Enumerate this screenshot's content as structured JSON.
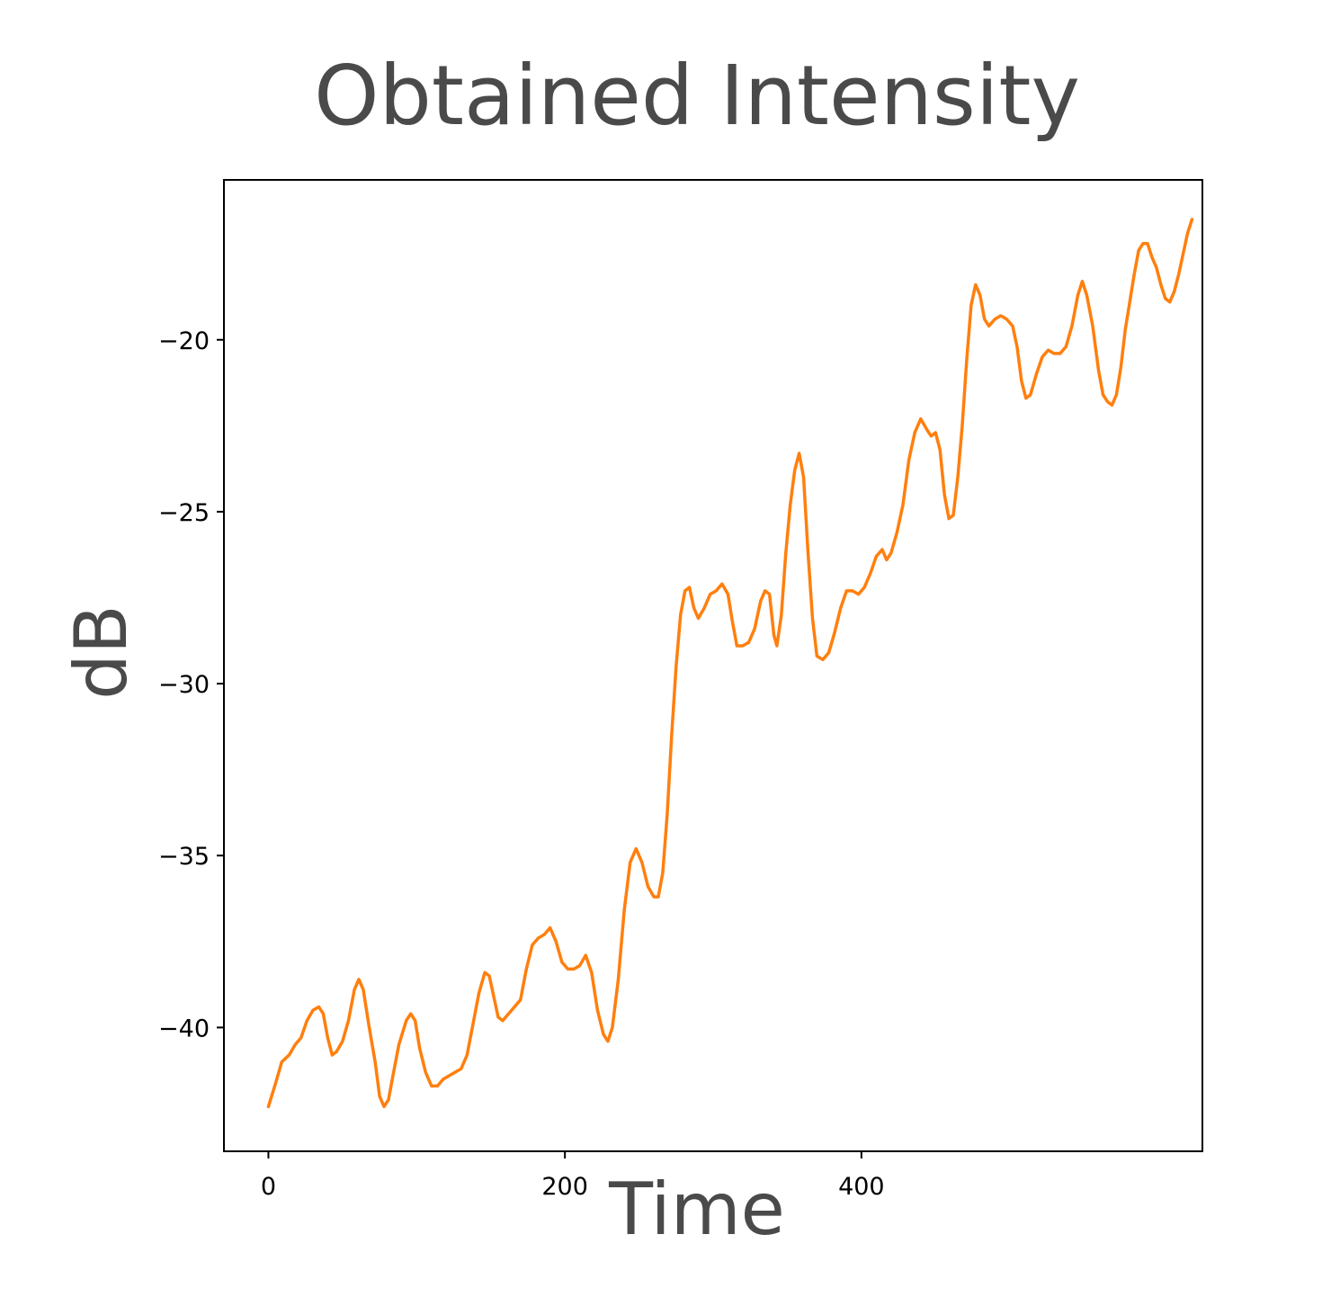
{
  "chart_data": {
    "type": "line",
    "title": "Obtained Intensity",
    "xlabel": "Time",
    "ylabel": "dB",
    "xlim": [
      -30,
      630
    ],
    "ylim": [
      -43.6,
      -15.35
    ],
    "x_ticks": [
      0,
      200,
      400
    ],
    "x_tick_labels": [
      "0",
      "200",
      "400"
    ],
    "y_ticks": [
      -40,
      -35,
      -30,
      -25,
      -20
    ],
    "y_tick_labels": [
      "−40",
      "−35",
      "−30",
      "−25",
      "−20"
    ],
    "grid": false,
    "legend": "none",
    "color": "#ff7f0e",
    "series": [
      {
        "points": [
          [
            0,
            -42.3
          ],
          [
            5,
            -41.6
          ],
          [
            9,
            -41.0
          ],
          [
            14,
            -40.8
          ],
          [
            18,
            -40.5
          ],
          [
            22,
            -40.3
          ],
          [
            26,
            -39.8
          ],
          [
            30,
            -39.5
          ],
          [
            34,
            -39.4
          ],
          [
            37,
            -39.6
          ],
          [
            40,
            -40.3
          ],
          [
            43,
            -40.8
          ],
          [
            46,
            -40.7
          ],
          [
            50,
            -40.4
          ],
          [
            54,
            -39.8
          ],
          [
            58,
            -38.9
          ],
          [
            61,
            -38.6
          ],
          [
            64,
            -38.9
          ],
          [
            68,
            -40.0
          ],
          [
            72,
            -41.0
          ],
          [
            75,
            -42.0
          ],
          [
            78,
            -42.3
          ],
          [
            81,
            -42.1
          ],
          [
            84,
            -41.4
          ],
          [
            88,
            -40.5
          ],
          [
            93,
            -39.8
          ],
          [
            96,
            -39.6
          ],
          [
            99,
            -39.8
          ],
          [
            102,
            -40.6
          ],
          [
            106,
            -41.3
          ],
          [
            110,
            -41.7
          ],
          [
            114,
            -41.7
          ],
          [
            118,
            -41.5
          ],
          [
            122,
            -41.4
          ],
          [
            126,
            -41.3
          ],
          [
            130,
            -41.2
          ],
          [
            134,
            -40.8
          ],
          [
            138,
            -39.9
          ],
          [
            142,
            -39.0
          ],
          [
            146,
            -38.4
          ],
          [
            149,
            -38.5
          ],
          [
            152,
            -39.1
          ],
          [
            155,
            -39.7
          ],
          [
            158,
            -39.8
          ],
          [
            162,
            -39.6
          ],
          [
            166,
            -39.4
          ],
          [
            170,
            -39.2
          ],
          [
            174,
            -38.3
          ],
          [
            178,
            -37.6
          ],
          [
            182,
            -37.4
          ],
          [
            186,
            -37.3
          ],
          [
            190,
            -37.1
          ],
          [
            194,
            -37.5
          ],
          [
            198,
            -38.1
          ],
          [
            202,
            -38.3
          ],
          [
            206,
            -38.3
          ],
          [
            210,
            -38.2
          ],
          [
            214,
            -37.9
          ],
          [
            218,
            -38.4
          ],
          [
            222,
            -39.5
          ],
          [
            226,
            -40.2
          ],
          [
            229,
            -40.4
          ],
          [
            232,
            -40.0
          ],
          [
            236,
            -38.6
          ],
          [
            240,
            -36.6
          ],
          [
            244,
            -35.2
          ],
          [
            248,
            -34.8
          ],
          [
            252,
            -35.2
          ],
          [
            256,
            -35.9
          ],
          [
            260,
            -36.2
          ],
          [
            263,
            -36.2
          ],
          [
            266,
            -35.5
          ],
          [
            269,
            -33.8
          ],
          [
            272,
            -31.5
          ],
          [
            275,
            -29.5
          ],
          [
            278,
            -28.0
          ],
          [
            281,
            -27.3
          ],
          [
            284,
            -27.2
          ],
          [
            287,
            -27.8
          ],
          [
            290,
            -28.1
          ],
          [
            294,
            -27.8
          ],
          [
            298,
            -27.4
          ],
          [
            302,
            -27.3
          ],
          [
            306,
            -27.1
          ],
          [
            310,
            -27.4
          ],
          [
            313,
            -28.2
          ],
          [
            316,
            -28.9
          ],
          [
            320,
            -28.9
          ],
          [
            324,
            -28.8
          ],
          [
            328,
            -28.4
          ],
          [
            332,
            -27.6
          ],
          [
            335,
            -27.3
          ],
          [
            338,
            -27.4
          ],
          [
            341,
            -28.6
          ],
          [
            343,
            -28.9
          ],
          [
            346,
            -28.0
          ],
          [
            349,
            -26.2
          ],
          [
            352,
            -24.8
          ],
          [
            355,
            -23.8
          ],
          [
            358,
            -23.3
          ],
          [
            361,
            -24.0
          ],
          [
            364,
            -26.2
          ],
          [
            367,
            -28.1
          ],
          [
            370,
            -29.2
          ],
          [
            374,
            -29.3
          ],
          [
            378,
            -29.1
          ],
          [
            382,
            -28.5
          ],
          [
            386,
            -27.8
          ],
          [
            390,
            -27.3
          ],
          [
            394,
            -27.3
          ],
          [
            398,
            -27.4
          ],
          [
            402,
            -27.2
          ],
          [
            406,
            -26.8
          ],
          [
            410,
            -26.3
          ],
          [
            414,
            -26.1
          ],
          [
            417,
            -26.4
          ],
          [
            420,
            -26.2
          ],
          [
            424,
            -25.6
          ],
          [
            428,
            -24.8
          ],
          [
            432,
            -23.5
          ],
          [
            436,
            -22.7
          ],
          [
            440,
            -22.3
          ],
          [
            444,
            -22.6
          ],
          [
            447,
            -22.8
          ],
          [
            450,
            -22.7
          ],
          [
            453,
            -23.2
          ],
          [
            456,
            -24.5
          ],
          [
            459,
            -25.2
          ],
          [
            462,
            -25.1
          ],
          [
            465,
            -24.0
          ],
          [
            468,
            -22.5
          ],
          [
            471,
            -20.6
          ],
          [
            474,
            -19.0
          ],
          [
            477,
            -18.4
          ],
          [
            480,
            -18.7
          ],
          [
            483,
            -19.4
          ],
          [
            486,
            -19.6
          ],
          [
            490,
            -19.4
          ],
          [
            494,
            -19.3
          ],
          [
            498,
            -19.4
          ],
          [
            502,
            -19.6
          ],
          [
            505,
            -20.2
          ],
          [
            508,
            -21.2
          ],
          [
            511,
            -21.7
          ],
          [
            514,
            -21.6
          ],
          [
            518,
            -21.0
          ],
          [
            522,
            -20.5
          ],
          [
            526,
            -20.3
          ],
          [
            530,
            -20.4
          ],
          [
            534,
            -20.4
          ],
          [
            538,
            -20.2
          ],
          [
            542,
            -19.6
          ],
          [
            546,
            -18.7
          ],
          [
            549,
            -18.3
          ],
          [
            552,
            -18.7
          ],
          [
            556,
            -19.6
          ],
          [
            560,
            -20.9
          ],
          [
            563,
            -21.6
          ],
          [
            566,
            -21.8
          ],
          [
            569,
            -21.9
          ],
          [
            572,
            -21.6
          ],
          [
            575,
            -20.8
          ],
          [
            578,
            -19.7
          ],
          [
            581,
            -18.9
          ],
          [
            584,
            -18.1
          ],
          [
            587,
            -17.4
          ],
          [
            590,
            -17.2
          ],
          [
            593,
            -17.2
          ],
          [
            596,
            -17.6
          ],
          [
            599,
            -17.9
          ],
          [
            602,
            -18.4
          ],
          [
            605,
            -18.8
          ],
          [
            608,
            -18.9
          ],
          [
            611,
            -18.6
          ],
          [
            614,
            -18.1
          ],
          [
            617,
            -17.5
          ],
          [
            620,
            -16.9
          ],
          [
            623,
            -16.5
          ]
        ]
      }
    ]
  }
}
